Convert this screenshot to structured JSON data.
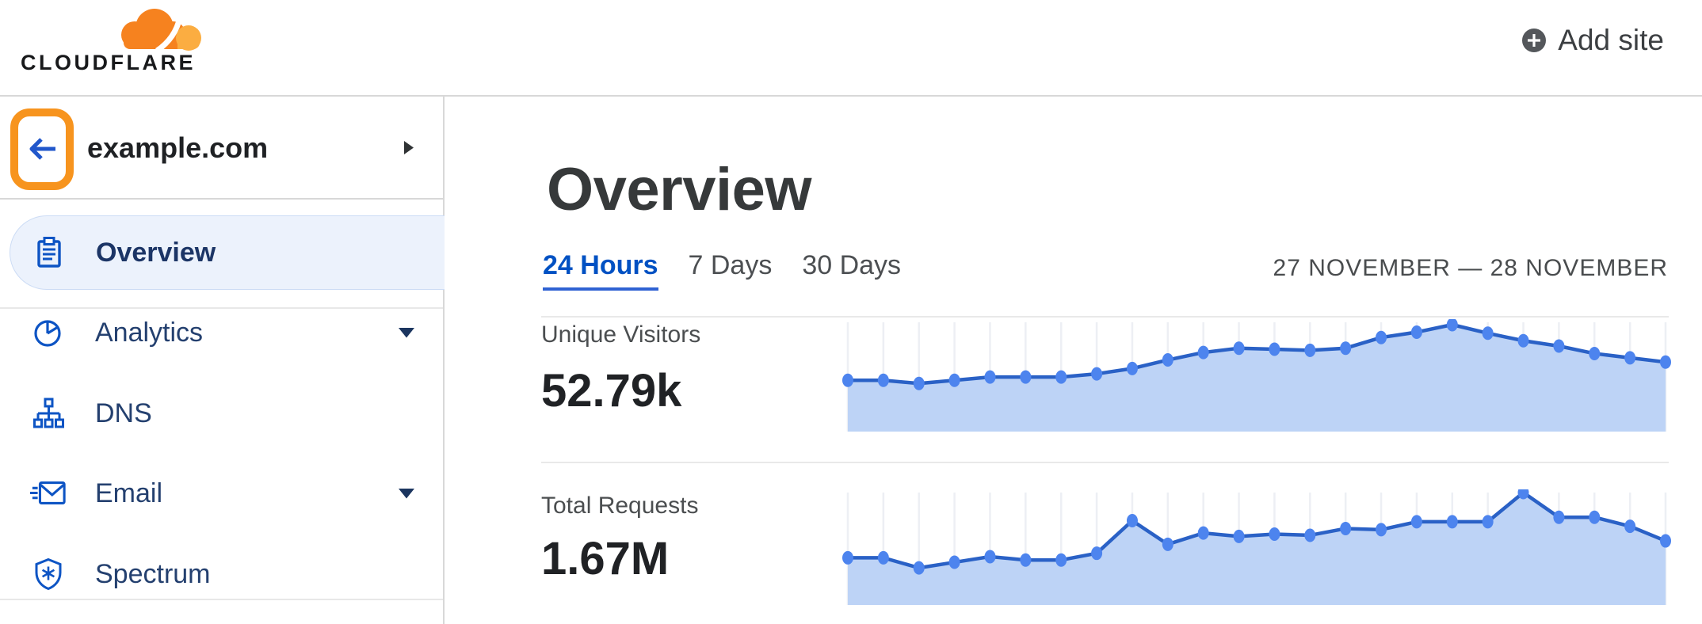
{
  "header": {
    "logo_text": "CLOUDFLARE",
    "add_site_label": "Add site"
  },
  "sidebar": {
    "site": {
      "name": "example.com"
    },
    "items": [
      {
        "label": "Overview",
        "icon": "clipboard-icon",
        "active": true,
        "has_submenu": false
      },
      {
        "label": "Analytics",
        "icon": "pie-chart-icon",
        "active": false,
        "has_submenu": true
      },
      {
        "label": "DNS",
        "icon": "dns-tree-icon",
        "active": false,
        "has_submenu": false
      },
      {
        "label": "Email",
        "icon": "email-icon",
        "active": false,
        "has_submenu": true
      },
      {
        "label": "Spectrum",
        "icon": "shield-icon",
        "active": false,
        "has_submenu": false
      }
    ]
  },
  "main": {
    "title": "Overview",
    "tabs": [
      {
        "label": "24 Hours",
        "active": true
      },
      {
        "label": "7 Days",
        "active": false
      },
      {
        "label": "30 Days",
        "active": false
      }
    ],
    "date_range": "27 NOVEMBER — 28 NOVEMBER",
    "metrics": [
      {
        "label": "Unique Visitors",
        "value": "52.79k"
      },
      {
        "label": "Total Requests",
        "value": "1.67M"
      }
    ]
  },
  "chart_data": [
    {
      "type": "area",
      "title": "Unique Visitors",
      "total_label": "52.79k",
      "x": "24 hourly points over 27–28 November (no axis labels shown)",
      "unit": "relative height, peak = 100",
      "values": [
        48,
        48,
        45,
        48,
        51,
        51,
        51,
        54,
        59,
        67,
        74,
        78,
        77,
        76,
        78,
        88,
        93,
        100,
        92,
        85,
        80,
        73,
        69,
        65
      ],
      "grid": "vertical gridlines at each point",
      "legend": "none",
      "ylim": [
        0,
        100
      ]
    },
    {
      "type": "area",
      "title": "Total Requests",
      "total_label": "1.67M",
      "x": "24 hourly points over 27–28 November (no axis labels shown)",
      "unit": "relative height, peak = 100",
      "values": [
        42,
        42,
        33,
        38,
        43,
        40,
        40,
        46,
        75,
        54,
        64,
        61,
        63,
        62,
        68,
        67,
        74,
        74,
        74,
        100,
        78,
        78,
        70,
        57
      ],
      "grid": "vertical gridlines at each point",
      "legend": "none",
      "ylim": [
        0,
        100
      ]
    }
  ],
  "colors": {
    "brand_orange": "#f6821f",
    "brand_orange_light": "#fbad41",
    "annotation_orange": "#f7941e",
    "link_blue": "#0051c3",
    "sidebar_icon_blue": "#0d54c4",
    "sidebar_text_navy": "#24406f",
    "active_pill_bg": "#ecf2fc",
    "chart_line": "#2a61c6",
    "chart_dot": "#4d84ee",
    "chart_fill": "#bdd3f6",
    "chart_grid": "#edeff4",
    "divider_gray": "#d8d8d8"
  }
}
